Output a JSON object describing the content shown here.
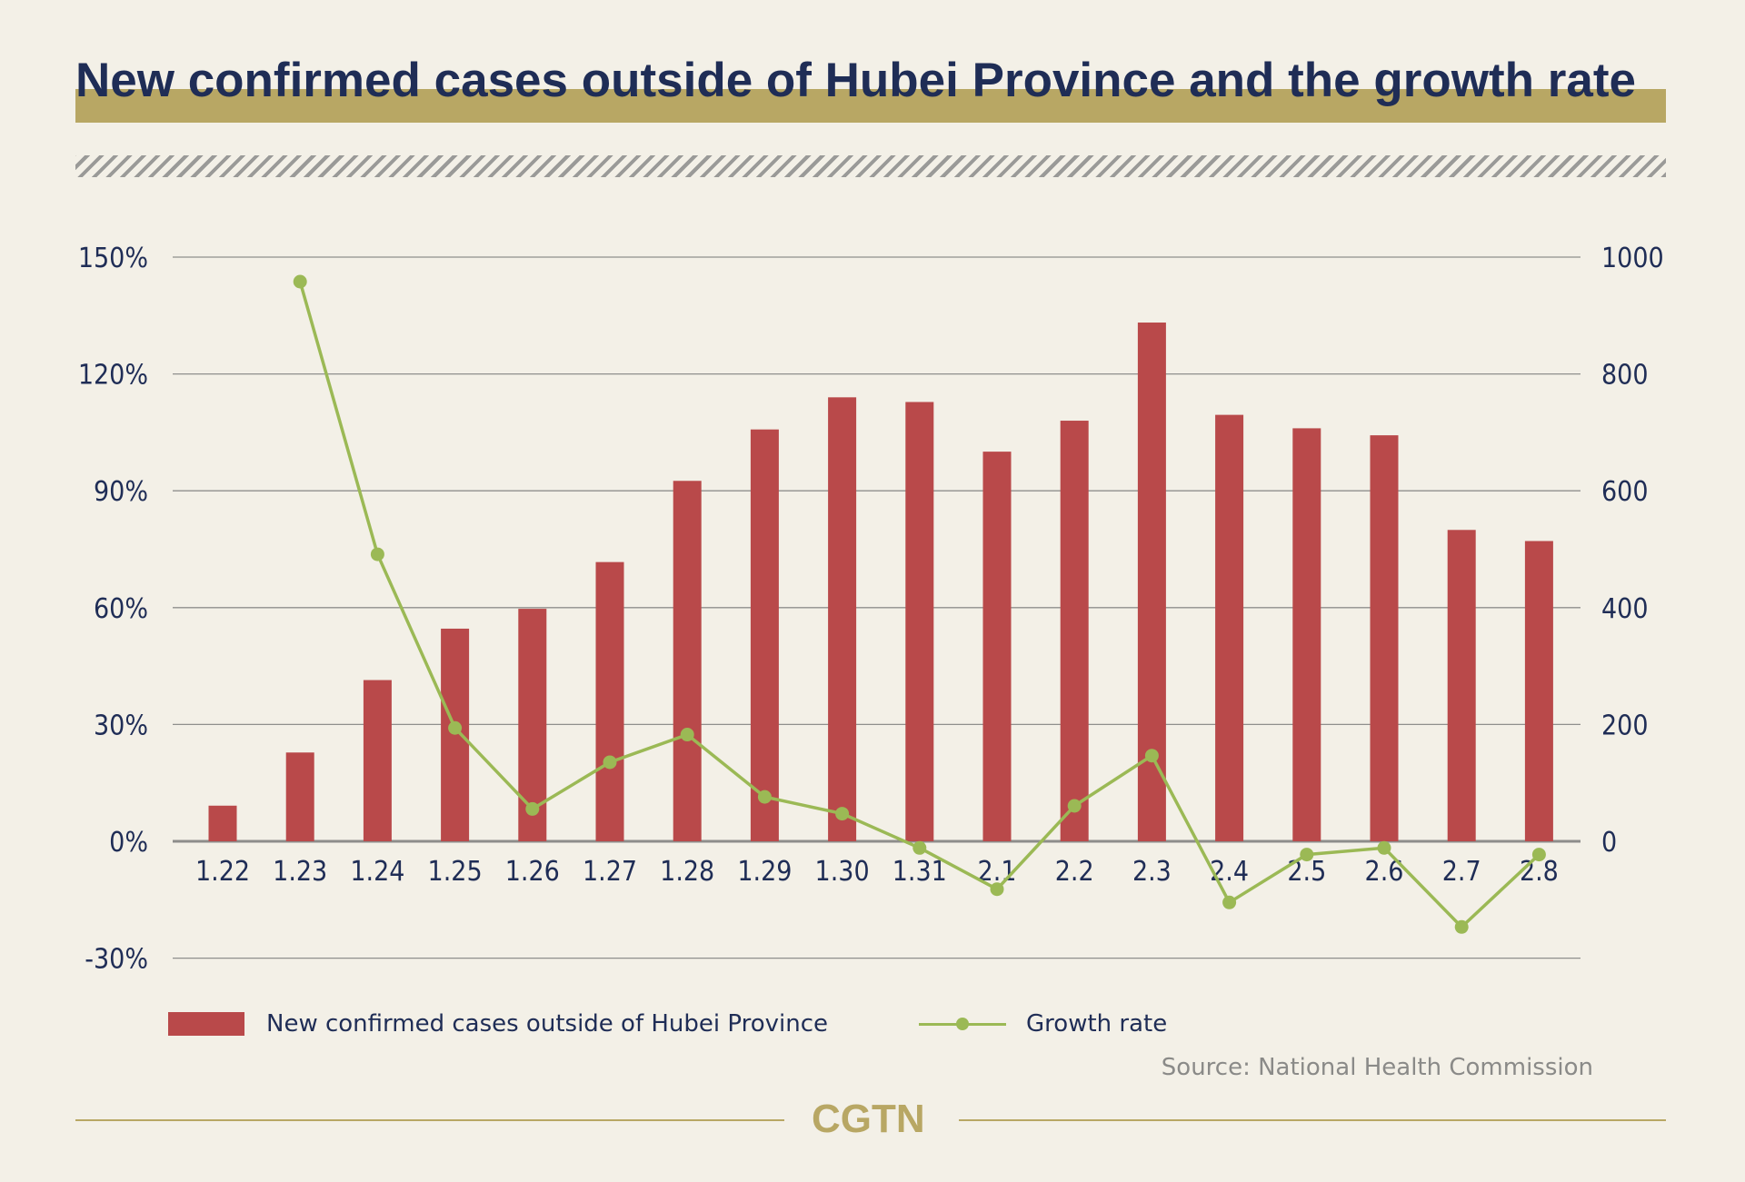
{
  "chart_data": {
    "type": "bar",
    "title": "New confirmed cases outside of Hubei Province and the growth rate",
    "categories": [
      "1.22",
      "1.23",
      "1.24",
      "1.25",
      "1.26",
      "1.27",
      "1.28",
      "1.29",
      "1.30",
      "1.31",
      "2.1",
      "2.2",
      "2.3",
      "2.4",
      "2.5",
      "2.6",
      "2.7",
      "2.8"
    ],
    "series": [
      {
        "name": "New confirmed cases outside of Hubei Province",
        "type": "bar",
        "axis": "right",
        "color": "#b9494a",
        "values": [
          61,
          152,
          276,
          364,
          398,
          478,
          617,
          705,
          760,
          752,
          667,
          720,
          888,
          730,
          707,
          695,
          533,
          514
        ]
      },
      {
        "name": "Growth rate",
        "type": "line",
        "axis": "left",
        "unit": "%",
        "color": "#9bb955",
        "values": [
          null,
          143.7,
          73.7,
          29.1,
          8.3,
          20.3,
          27.4,
          11.4,
          7.1,
          -1.7,
          -12.3,
          9.1,
          22.0,
          -15.7,
          -3.4,
          -1.7,
          -22.0,
          -3.4
        ]
      }
    ],
    "left_axis": {
      "ylim": [
        -30,
        150
      ],
      "ticks": [
        -30,
        0,
        30,
        60,
        90,
        120,
        150
      ],
      "tick_labels": [
        "-30%",
        "0%",
        "30%",
        "60%",
        "90%",
        "120%",
        "150%"
      ]
    },
    "right_axis": {
      "ylim": [
        -200,
        1000
      ],
      "ticks": [
        0,
        200,
        400,
        600,
        800,
        1000
      ],
      "tick_labels": [
        "0",
        "200",
        "400",
        "600",
        "800",
        "1000"
      ]
    },
    "grid": true,
    "legend_placement": "bottom-left"
  },
  "source": "Source: National Health Commission",
  "logo": "CGTN"
}
